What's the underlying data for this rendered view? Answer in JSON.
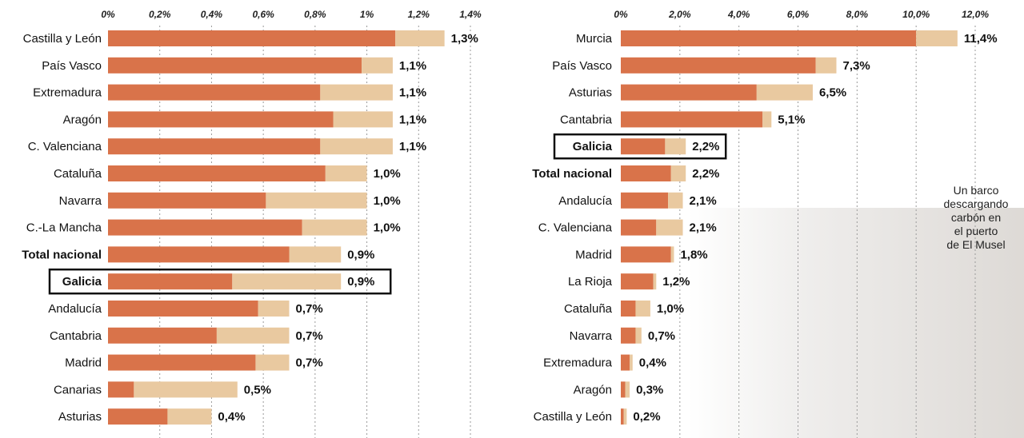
{
  "colors": {
    "primary": "#d9734a",
    "secondary": "#e9c9a0",
    "highlight_box": "#111111",
    "axis_dash": "#9a9a9a"
  },
  "chart_data": [
    {
      "type": "bar",
      "orientation": "horizontal",
      "stacked": true,
      "xlim": [
        0,
        1.4
      ],
      "ticks": [
        "0%",
        "0,2%",
        "0,4%",
        "0,6%",
        "0,8%",
        "1%",
        "1,2%",
        "1,4%"
      ],
      "tick_values": [
        0,
        0.2,
        0.4,
        0.6,
        0.8,
        1.0,
        1.2,
        1.4
      ],
      "grid": "vertical dashed",
      "categories": [
        "Castilla y León",
        "País Vasco",
        "Extremadura",
        "Aragón",
        "C. Valenciana",
        "Cataluña",
        "Navarra",
        "C.-La Mancha",
        "Total nacional",
        "Galicia",
        "Andalucía",
        "Cantabria",
        "Madrid",
        "Canarias",
        "Asturias"
      ],
      "bold_categories": [
        "Total nacional",
        "Galicia"
      ],
      "highlighted_category": "Galicia",
      "series": [
        {
          "values": [
            1.11,
            0.98,
            0.82,
            0.87,
            0.82,
            0.84,
            0.61,
            0.75,
            0.7,
            0.48,
            0.58,
            0.42,
            0.57,
            0.1,
            0.23
          ]
        },
        {
          "values": [
            0.19,
            0.12,
            0.28,
            0.23,
            0.28,
            0.16,
            0.39,
            0.25,
            0.2,
            0.42,
            0.12,
            0.28,
            0.13,
            0.4,
            0.17
          ]
        }
      ],
      "totals": [
        1.3,
        1.1,
        1.1,
        1.1,
        1.1,
        1.0,
        1.0,
        1.0,
        0.9,
        0.9,
        0.7,
        0.7,
        0.7,
        0.5,
        0.4
      ],
      "value_labels": [
        "1,3%",
        "1,1%",
        "1,1%",
        "1,1%",
        "1,1%",
        "1,0%",
        "1,0%",
        "1,0%",
        "0,9%",
        "0,9%",
        "0,7%",
        "0,7%",
        "0,7%",
        "0,5%",
        "0,4%"
      ]
    },
    {
      "type": "bar",
      "orientation": "horizontal",
      "stacked": true,
      "xlim": [
        0,
        12.0
      ],
      "ticks": [
        "0%",
        "2,0%",
        "4,0%",
        "6,0%",
        "8,0%",
        "10,0%",
        "12,0%"
      ],
      "tick_values": [
        0,
        2,
        4,
        6,
        8,
        10,
        12
      ],
      "grid": "vertical dashed",
      "categories": [
        "Murcia",
        "País Vasco",
        "Asturias",
        "Cantabria",
        "Galicia",
        "Total nacional",
        "Andalucía",
        "C. Valenciana",
        "Madrid",
        "La Rioja",
        "Cataluña",
        "Navarra",
        "Extremadura",
        "Aragón",
        "Castilla y León"
      ],
      "bold_categories": [
        "Galicia",
        "Total nacional"
      ],
      "highlighted_category": "Galicia",
      "series": [
        {
          "values": [
            10.0,
            6.6,
            4.6,
            4.8,
            1.5,
            1.7,
            1.6,
            1.2,
            1.7,
            1.1,
            0.5,
            0.5,
            0.3,
            0.15,
            0.1
          ]
        },
        {
          "values": [
            1.4,
            0.7,
            1.9,
            0.3,
            0.7,
            0.5,
            0.5,
            0.9,
            0.1,
            0.1,
            0.5,
            0.2,
            0.1,
            0.15,
            0.1
          ]
        }
      ],
      "totals": [
        11.4,
        7.3,
        6.5,
        5.1,
        2.2,
        2.2,
        2.1,
        2.1,
        1.8,
        1.2,
        1.0,
        0.7,
        0.4,
        0.3,
        0.2
      ],
      "value_labels": [
        "11,4%",
        "7,3%",
        "6,5%",
        "5,1%",
        "2,2%",
        "2,2%",
        "2,1%",
        "2,1%",
        "1,8%",
        "1,2%",
        "1,0%",
        "0,7%",
        "0,4%",
        "0,3%",
        "0,2%"
      ]
    }
  ],
  "caption": {
    "lines": [
      "Un barco",
      "descargando",
      "carbón en",
      "el puerto",
      "de El Musel"
    ]
  }
}
